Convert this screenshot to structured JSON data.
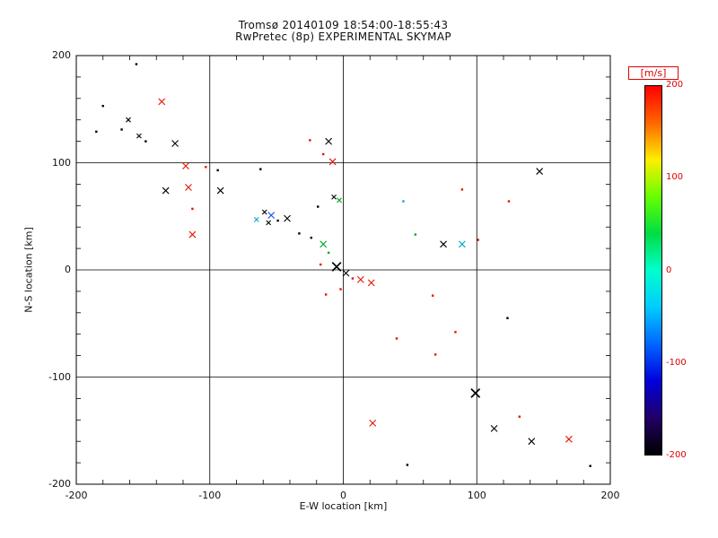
{
  "title": {
    "line1": "Tromsø 20140109 18:54:00-18:55:43",
    "line2": "RwPretec (8p) EXPERIMENTAL SKYMAP"
  },
  "axes": {
    "xlabel": "E-W location [km]",
    "ylabel": "N-S location [km]",
    "xlim": [
      -200,
      200
    ],
    "ylim": [
      -200,
      200
    ],
    "xticks": [
      -200,
      -100,
      0,
      100,
      200
    ],
    "yticks": [
      -200,
      -100,
      0,
      100,
      200
    ],
    "minor_tick_step": 20,
    "grid": true
  },
  "colorbar": {
    "title": "[m/s]",
    "ticks": [
      200,
      100,
      0,
      -100,
      -200
    ],
    "unit": "m/s",
    "colors": [
      "#ff0000",
      "#ff6600",
      "#ffee00",
      "#66ff00",
      "#00dd44",
      "#00ffcc",
      "#00ccff",
      "#0066ff",
      "#0000dd",
      "#220066",
      "#000000"
    ]
  },
  "chart_data": {
    "type": "scatter",
    "title": "Tromsø 20140109 18:54:00-18:55:43 / RwPretec (8p) EXPERIMENTAL SKYMAP",
    "xlabel": "E-W location [km]",
    "ylabel": "N-S location [km]",
    "xlim": [
      -200,
      200
    ],
    "ylim": [
      -200,
      200
    ],
    "legend": "color encodes Doppler velocity in m/s, -200 (black) to +200 (red)",
    "palette": {
      "k": "#000000",
      "r": "#e81000",
      "g": "#00aa22",
      "c": "#00aacc",
      "b": "#2255ee"
    },
    "points": [
      {
        "x": -155,
        "y": 192,
        "c": "k",
        "m": "d",
        "s": 1
      },
      {
        "x": -136,
        "y": 157,
        "c": "r",
        "m": "x",
        "s": 2
      },
      {
        "x": -180,
        "y": 153,
        "c": "k",
        "m": "d",
        "s": 1
      },
      {
        "x": -161,
        "y": 140,
        "c": "k",
        "m": "x",
        "s": 1
      },
      {
        "x": -185,
        "y": 129,
        "c": "k",
        "m": "d",
        "s": 1
      },
      {
        "x": -166,
        "y": 131,
        "c": "k",
        "m": "d",
        "s": 1
      },
      {
        "x": -153,
        "y": 125,
        "c": "k",
        "m": "x",
        "s": 1
      },
      {
        "x": -148,
        "y": 120,
        "c": "k",
        "m": "d",
        "s": 1
      },
      {
        "x": -126,
        "y": 118,
        "c": "k",
        "m": "x",
        "s": 2
      },
      {
        "x": -25,
        "y": 121,
        "c": "r",
        "m": "d",
        "s": 1
      },
      {
        "x": -11,
        "y": 120,
        "c": "k",
        "m": "x",
        "s": 2
      },
      {
        "x": -15,
        "y": 108,
        "c": "r",
        "m": "d",
        "s": 1
      },
      {
        "x": -8,
        "y": 101,
        "c": "r",
        "m": "x",
        "s": 2
      },
      {
        "x": -118,
        "y": 97,
        "c": "r",
        "m": "x",
        "s": 2
      },
      {
        "x": -103,
        "y": 96,
        "c": "r",
        "m": "d",
        "s": 1
      },
      {
        "x": -94,
        "y": 93,
        "c": "k",
        "m": "d",
        "s": 1
      },
      {
        "x": -62,
        "y": 94,
        "c": "k",
        "m": "d",
        "s": 1
      },
      {
        "x": 147,
        "y": 92,
        "c": "k",
        "m": "x",
        "s": 2
      },
      {
        "x": -133,
        "y": 74,
        "c": "k",
        "m": "x",
        "s": 2
      },
      {
        "x": -116,
        "y": 77,
        "c": "r",
        "m": "x",
        "s": 2
      },
      {
        "x": -92,
        "y": 74,
        "c": "k",
        "m": "x",
        "s": 2
      },
      {
        "x": 89,
        "y": 75,
        "c": "r",
        "m": "d",
        "s": 1
      },
      {
        "x": 124,
        "y": 64,
        "c": "r",
        "m": "d",
        "s": 1
      },
      {
        "x": -113,
        "y": 57,
        "c": "r",
        "m": "d",
        "s": 1
      },
      {
        "x": -7,
        "y": 68,
        "c": "k",
        "m": "x",
        "s": 1
      },
      {
        "x": -3,
        "y": 65,
        "c": "g",
        "m": "x",
        "s": 1
      },
      {
        "x": 45,
        "y": 64,
        "c": "c",
        "m": "d",
        "s": 1
      },
      {
        "x": -59,
        "y": 54,
        "c": "k",
        "m": "x",
        "s": 1
      },
      {
        "x": -54,
        "y": 51,
        "c": "b",
        "m": "x",
        "s": 2
      },
      {
        "x": -65,
        "y": 47,
        "c": "c",
        "m": "x",
        "s": 1
      },
      {
        "x": -56,
        "y": 44,
        "c": "k",
        "m": "x",
        "s": 1
      },
      {
        "x": -49,
        "y": 46,
        "c": "k",
        "m": "d",
        "s": 1
      },
      {
        "x": -42,
        "y": 48,
        "c": "k",
        "m": "x",
        "s": 2
      },
      {
        "x": -19,
        "y": 59,
        "c": "k",
        "m": "d",
        "s": 1
      },
      {
        "x": -33,
        "y": 34,
        "c": "k",
        "m": "d",
        "s": 1
      },
      {
        "x": -24,
        "y": 30,
        "c": "k",
        "m": "d",
        "s": 1
      },
      {
        "x": -15,
        "y": 24,
        "c": "g",
        "m": "x",
        "s": 2
      },
      {
        "x": 54,
        "y": 33,
        "c": "g",
        "m": "d",
        "s": 1
      },
      {
        "x": 75,
        "y": 24,
        "c": "k",
        "m": "x",
        "s": 2
      },
      {
        "x": 89,
        "y": 24,
        "c": "c",
        "m": "x",
        "s": 2
      },
      {
        "x": 101,
        "y": 28,
        "c": "r",
        "m": "d",
        "s": 1
      },
      {
        "x": -11,
        "y": 16,
        "c": "g",
        "m": "d",
        "s": 1
      },
      {
        "x": -113,
        "y": 33,
        "c": "r",
        "m": "x",
        "s": 2
      },
      {
        "x": -17,
        "y": 5,
        "c": "r",
        "m": "d",
        "s": 1
      },
      {
        "x": -5,
        "y": 3,
        "c": "k",
        "m": "x",
        "s": 3
      },
      {
        "x": 2,
        "y": -3,
        "c": "k",
        "m": "x",
        "s": 2
      },
      {
        "x": 7,
        "y": -8,
        "c": "r",
        "m": "d",
        "s": 1
      },
      {
        "x": 13,
        "y": -9,
        "c": "r",
        "m": "x",
        "s": 2
      },
      {
        "x": 21,
        "y": -12,
        "c": "r",
        "m": "x",
        "s": 2
      },
      {
        "x": -13,
        "y": -23,
        "c": "r",
        "m": "d",
        "s": 1
      },
      {
        "x": -2,
        "y": -18,
        "c": "r",
        "m": "d",
        "s": 1
      },
      {
        "x": 67,
        "y": -24,
        "c": "r",
        "m": "d",
        "s": 1
      },
      {
        "x": 123,
        "y": -45,
        "c": "k",
        "m": "d",
        "s": 1
      },
      {
        "x": 84,
        "y": -58,
        "c": "r",
        "m": "d",
        "s": 1
      },
      {
        "x": 40,
        "y": -64,
        "c": "r",
        "m": "d",
        "s": 1
      },
      {
        "x": 69,
        "y": -79,
        "c": "r",
        "m": "d",
        "s": 1
      },
      {
        "x": 99,
        "y": -115,
        "c": "k",
        "m": "x",
        "s": 3
      },
      {
        "x": 132,
        "y": -137,
        "c": "r",
        "m": "d",
        "s": 1
      },
      {
        "x": 22,
        "y": -143,
        "c": "r",
        "m": "x",
        "s": 2
      },
      {
        "x": 113,
        "y": -148,
        "c": "k",
        "m": "x",
        "s": 2
      },
      {
        "x": 141,
        "y": -160,
        "c": "k",
        "m": "x",
        "s": 2
      },
      {
        "x": 169,
        "y": -158,
        "c": "r",
        "m": "x",
        "s": 2
      },
      {
        "x": 48,
        "y": -182,
        "c": "k",
        "m": "d",
        "s": 1
      },
      {
        "x": 185,
        "y": -183,
        "c": "k",
        "m": "d",
        "s": 1
      }
    ]
  }
}
